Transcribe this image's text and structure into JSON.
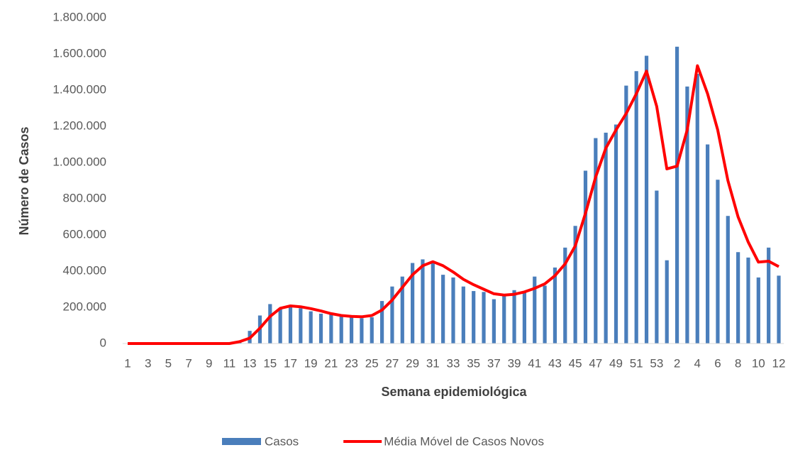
{
  "chart_data": {
    "type": "bar_line",
    "x_label": "Semana epidemiológica",
    "y_label": "Número de Casos",
    "categories": [
      "1",
      null,
      "3",
      null,
      "5",
      null,
      "7",
      null,
      "9",
      null,
      "11",
      null,
      "13",
      null,
      "15",
      null,
      "17",
      null,
      "19",
      null,
      "21",
      null,
      "23",
      null,
      "25",
      null,
      "27",
      null,
      "29",
      null,
      "31",
      null,
      "33",
      null,
      "35",
      null,
      "37",
      null,
      "39",
      null,
      "41",
      null,
      "43",
      null,
      "45",
      null,
      "47",
      null,
      "49",
      null,
      "51",
      null,
      "53",
      null,
      "2",
      null,
      "4",
      null,
      "6",
      null,
      "8",
      null,
      "10",
      null,
      "12"
    ],
    "series": [
      {
        "name": "Casos",
        "type": "bar",
        "color": "#4a7ebb",
        "values": [
          0,
          0,
          0,
          0,
          0,
          0,
          0,
          0,
          0,
          0,
          2000,
          8000,
          70000,
          155000,
          218000,
          195000,
          200000,
          195000,
          178000,
          165000,
          165000,
          150000,
          145000,
          140000,
          145000,
          235000,
          315000,
          370000,
          445000,
          465000,
          450000,
          380000,
          365000,
          315000,
          290000,
          285000,
          245000,
          270000,
          295000,
          290000,
          370000,
          320000,
          420000,
          530000,
          650000,
          955000,
          1135000,
          1165000,
          1210000,
          1425000,
          1505000,
          1590000,
          845000,
          460000,
          1640000,
          1420000,
          1490000,
          1100000,
          905000,
          705000,
          505000,
          475000,
          365000,
          530000,
          375000
        ]
      },
      {
        "name": "Média Móvel de Casos Novos",
        "type": "line",
        "color": "#ff0000",
        "values": [
          0,
          0,
          0,
          0,
          0,
          0,
          0,
          0,
          0,
          0,
          0,
          10000,
          30000,
          85000,
          150000,
          195000,
          208000,
          203000,
          193000,
          180000,
          165000,
          155000,
          150000,
          148000,
          155000,
          185000,
          240000,
          310000,
          380000,
          430000,
          452000,
          430000,
          395000,
          355000,
          325000,
          300000,
          275000,
          268000,
          272000,
          285000,
          305000,
          330000,
          375000,
          440000,
          540000,
          720000,
          920000,
          1080000,
          1180000,
          1270000,
          1380000,
          1505000,
          1310000,
          965000,
          980000,
          1180000,
          1535000,
          1380000,
          1180000,
          900000,
          700000,
          560000,
          450000,
          455000,
          425000
        ]
      }
    ],
    "ylim": [
      0,
      1800000
    ],
    "yticks": [
      0,
      {
        "value": 200000,
        "label": "200.000"
      },
      {
        "value": 400000,
        "label": "400.000"
      },
      {
        "value": 600000,
        "label": "600.000"
      },
      {
        "value": 800000,
        "label": "800.000"
      },
      {
        "value": 1000000,
        "label": "1.000.000"
      },
      {
        "value": 1200000,
        "label": "1.200.000"
      },
      {
        "value": 1400000,
        "label": "1.400.000"
      },
      {
        "value": 1600000,
        "label": "1.600.000"
      },
      {
        "value": 1800000,
        "label": "1.800.000"
      }
    ],
    "grid": false,
    "legend": "bottom"
  }
}
